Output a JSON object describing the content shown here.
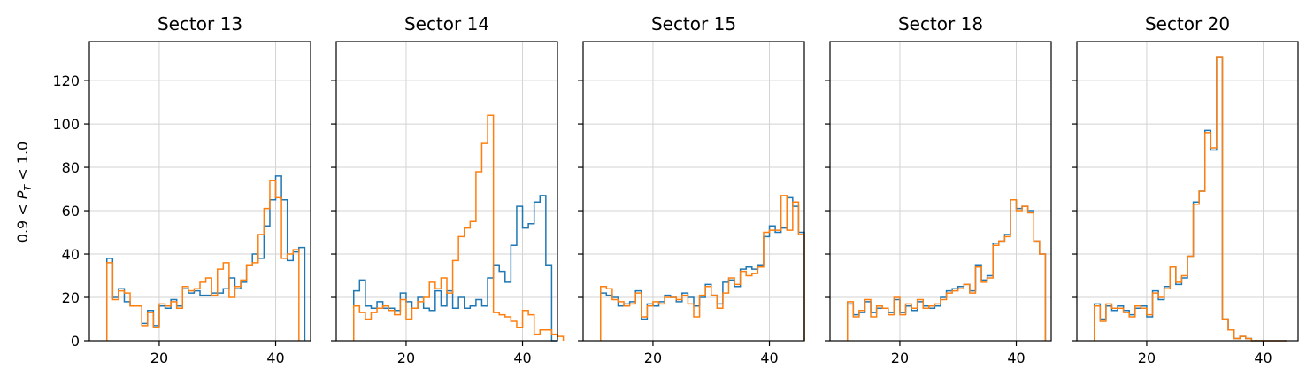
{
  "chart_data": {
    "type": "histogram",
    "bin_edges_start": 11,
    "bin_width": 1,
    "grid": true,
    "ylim": [
      0,
      138
    ],
    "xlim": [
      8,
      46
    ],
    "xticks": [
      20,
      40
    ],
    "yticks": [
      0,
      20,
      40,
      60,
      80,
      100,
      120
    ],
    "ylabel": "0.9 < P_T < 1.0",
    "series_colors": [
      "#1f77b4",
      "#ff7f0e"
    ],
    "panels": [
      {
        "title": "Sector 13",
        "series": [
          {
            "values": [
              38,
              20,
              24,
              18,
              16,
              16,
              8,
              14,
              7,
              16,
              15,
              19,
              16,
              24,
              22,
              23,
              21,
              21,
              22,
              22,
              24,
              29,
              24,
              27,
              35,
              40,
              38,
              53,
              65,
              76,
              65,
              37,
              41,
              43
            ]
          },
          {
            "values": [
              36,
              19,
              23,
              22,
              16,
              16,
              7,
              13,
              6,
              17,
              16,
              18,
              15,
              25,
              23,
              24,
              27,
              29,
              21,
              33,
              36,
              20,
              25,
              28,
              35,
              36,
              49,
              61,
              74,
              66,
              38,
              40,
              42
            ]
          }
        ]
      },
      {
        "title": "Sector 14",
        "series": [
          {
            "values": [
              23,
              28,
              16,
              15,
              18,
              15,
              15,
              14,
              22,
              18,
              15,
              20,
              15,
              14,
              23,
              16,
              23,
              15,
              20,
              15,
              16,
              19,
              16,
              29,
              35,
              32,
              27,
              44,
              62,
              52,
              54,
              64,
              67,
              35,
              0
            ]
          },
          {
            "values": [
              16,
              13,
              10,
              13,
              15,
              16,
              14,
              12,
              19,
              10,
              15,
              18,
              20,
              27,
              24,
              29,
              22,
              37,
              48,
              52,
              55,
              78,
              91,
              104,
              13,
              12,
              11,
              9,
              6,
              14,
              12,
              3,
              5,
              5,
              3,
              2
            ]
          }
        ]
      },
      {
        "title": "Sector 15",
        "series": [
          {
            "values": [
              22,
              21,
              20,
              16,
              17,
              18,
              23,
              10,
              17,
              16,
              18,
              21,
              20,
              18,
              22,
              20,
              16,
              20,
              26,
              21,
              17,
              27,
              28,
              25,
              33,
              34,
              33,
              35,
              48,
              53,
              50,
              52,
              66,
              62,
              50
            ]
          },
          {
            "values": [
              25,
              24,
              19,
              18,
              16,
              17,
              22,
              11,
              16,
              18,
              17,
              20,
              20,
              19,
              21,
              17,
              11,
              21,
              25,
              21,
              15,
              22,
              29,
              26,
              32,
              30,
              31,
              34,
              50,
              51,
              51,
              67,
              51,
              64,
              49
            ]
          }
        ]
      },
      {
        "title": "Sector 18",
        "series": [
          {
            "values": [
              17,
              12,
              13,
              18,
              13,
              15,
              15,
              13,
              19,
              13,
              16,
              14,
              18,
              16,
              15,
              16,
              20,
              23,
              24,
              25,
              26,
              23,
              35,
              28,
              30,
              45,
              46,
              49,
              65,
              61,
              62,
              60,
              46,
              40
            ]
          },
          {
            "values": [
              18,
              11,
              14,
              19,
              11,
              16,
              15,
              12,
              20,
              12,
              17,
              15,
              19,
              15,
              16,
              17,
              19,
              22,
              23,
              24,
              26,
              22,
              34,
              27,
              29,
              44,
              46,
              48,
              65,
              60,
              62,
              59,
              46,
              40
            ]
          }
        ]
      },
      {
        "title": "Sector 20",
        "series": [
          {
            "values": [
              17,
              10,
              16,
              14,
              16,
              14,
              12,
              15,
              16,
              11,
              23,
              19,
              25,
              34,
              26,
              29,
              39,
              64,
              69,
              97,
              88,
              131,
              10,
              5,
              1,
              2,
              1,
              0,
              0,
              0,
              0,
              0,
              0
            ]
          },
          {
            "values": [
              16,
              9,
              17,
              15,
              15,
              13,
              11,
              16,
              15,
              12,
              22,
              20,
              24,
              34,
              27,
              30,
              39,
              63,
              69,
              96,
              89,
              131,
              10,
              5,
              1,
              2,
              1,
              0,
              0,
              0,
              0,
              0,
              0
            ]
          }
        ]
      }
    ]
  }
}
